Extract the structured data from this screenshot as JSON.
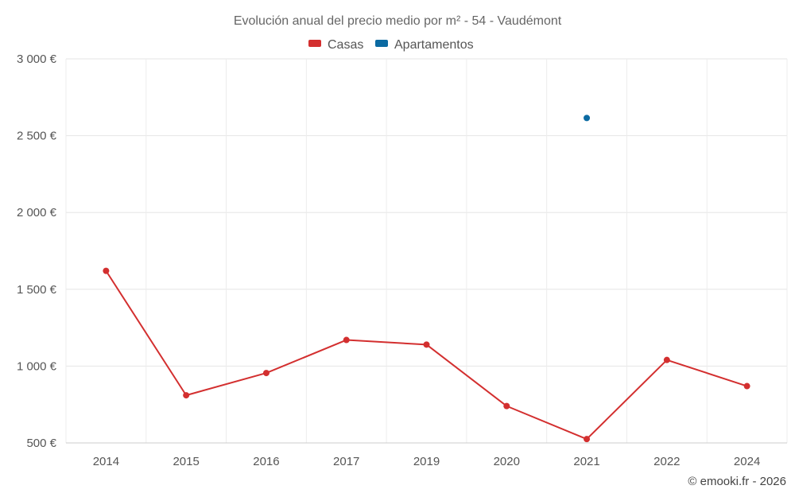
{
  "chart_data": {
    "type": "line",
    "title": "Evolución anual del precio medio por m² - 54 - Vaudémont",
    "categories": [
      "2014",
      "2015",
      "2016",
      "2017",
      "2019",
      "2020",
      "2021",
      "2022",
      "2024"
    ],
    "series": [
      {
        "name": "Casas",
        "color": "#d32f2f",
        "values": [
          1620,
          810,
          955,
          1170,
          1140,
          740,
          525,
          1040,
          870
        ]
      },
      {
        "name": "Apartamentos",
        "color": "#0b6aa2",
        "values": [
          null,
          null,
          null,
          null,
          null,
          null,
          2615,
          null,
          null
        ]
      }
    ],
    "ylim": [
      500,
      3000
    ],
    "yticks": [
      {
        "value": 500,
        "label": "500 €"
      },
      {
        "value": 1000,
        "label": "1 000 €"
      },
      {
        "value": 1500,
        "label": "1 500 €"
      },
      {
        "value": 2000,
        "label": "2 000 €"
      },
      {
        "value": 2500,
        "label": "2 500 €"
      },
      {
        "value": 3000,
        "label": "3 000 €"
      }
    ],
    "grid": true,
    "legend_position": "top-center",
    "credit": "© emooki.fr - 2026"
  }
}
